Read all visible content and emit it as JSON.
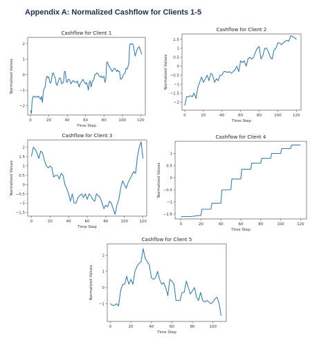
{
  "page": {
    "heading": "Appendix A: Normalized Cashflow for Clients 1-5"
  },
  "colors": {
    "line": "#3a7ca5",
    "heading": "#1f2d4d"
  },
  "chart_data": [
    {
      "type": "line",
      "title": "Cashflow for Client 1",
      "xlabel": "Time Step",
      "ylabel": "Normalized Values",
      "xlim": [
        -3,
        125
      ],
      "ylim": [
        -2.6,
        2.4
      ],
      "xticks": [
        0,
        20,
        40,
        60,
        80,
        100,
        120
      ],
      "yticks": [
        -2,
        -1,
        0,
        1,
        2
      ],
      "grid": false,
      "x": [
        0,
        1,
        2,
        3,
        4,
        5,
        6,
        7,
        8,
        9,
        10,
        11,
        12,
        13,
        14,
        15,
        16,
        17,
        18,
        19,
        20,
        21,
        22,
        23,
        24,
        25,
        26,
        27,
        28,
        29,
        30,
        31,
        32,
        33,
        34,
        35,
        36,
        37,
        38,
        39,
        40,
        41,
        42,
        43,
        44,
        45,
        46,
        47,
        48,
        49,
        50,
        51,
        52,
        53,
        54,
        55,
        56,
        57,
        58,
        59,
        60,
        61,
        62,
        63,
        64,
        65,
        66,
        67,
        68,
        69,
        70,
        71,
        72,
        73,
        74,
        75,
        76,
        77,
        78,
        79,
        80,
        81,
        82,
        83,
        84,
        85,
        86,
        87,
        88,
        89,
        90,
        91,
        92,
        93,
        94,
        95,
        96,
        97,
        98,
        99,
        100,
        101,
        102,
        103,
        104,
        105,
        106,
        107,
        108,
        109,
        110,
        111,
        112,
        113,
        114,
        115,
        116,
        117,
        118,
        119,
        120,
        121
      ],
      "y": [
        -2.3,
        -2.5,
        -1.6,
        -1.4,
        -1.4,
        -1.45,
        -1.45,
        -1.4,
        -1.45,
        -1.4,
        -1.5,
        -1.6,
        -1.4,
        -1.8,
        -1.1,
        -0.9,
        -0.8,
        -0.3,
        -0.1,
        -0.2,
        -0.15,
        -0.5,
        -0.55,
        -0.3,
        0.1,
        0.1,
        -0.1,
        -0.2,
        -0.6,
        -0.7,
        -0.5,
        -0.3,
        -0.2,
        -0.3,
        -0.6,
        -0.5,
        -0.5,
        0.2,
        0.2,
        -0.4,
        -0.5,
        -0.3,
        -0.3,
        -0.4,
        -0.6,
        -0.5,
        -0.4,
        -0.4,
        -0.45,
        -0.5,
        -0.5,
        -0.4,
        -0.6,
        -0.8,
        -0.6,
        -0.5,
        -0.4,
        -0.3,
        -0.4,
        -0.5,
        -0.6,
        -0.5,
        -0.7,
        -1.0,
        -0.5,
        -0.4,
        -0.8,
        -0.5,
        -0.4,
        -0.3,
        0.0,
        0.0,
        0.1,
        0.1,
        0.0,
        -0.1,
        -0.15,
        -0.1,
        -0.2,
        -0.15,
        -0.1,
        -0.5,
        -0.3,
        0.8,
        0.8,
        0.6,
        0.5,
        0.4,
        0.3,
        0.2,
        0.3,
        0.4,
        0.4,
        0.3,
        0.2,
        0.3,
        0.2,
        0.2,
        -0.3,
        -0.25,
        -0.2,
        0.0,
        0.05,
        0.1,
        0.4,
        0.35,
        0.5,
        0.7,
        1.9,
        2.0,
        1.95,
        2.0,
        1.9,
        1.5,
        1.2,
        1.4,
        1.6,
        1.7,
        1.8,
        1.7,
        1.5,
        1.3
      ],
      "legend": null
    },
    {
      "type": "line",
      "title": "Cashflow for Client 2",
      "xlabel": "Time Step",
      "ylabel": "Normalized Values",
      "xlim": [
        -3,
        125
      ],
      "ylim": [
        -2.45,
        1.8
      ],
      "xticks": [
        0,
        20,
        40,
        60,
        80,
        100,
        120
      ],
      "yticks": [
        -2.0,
        -1.5,
        -1.0,
        -0.5,
        0.0,
        0.5,
        1.0,
        1.5
      ],
      "grid": false,
      "x": [
        0,
        2,
        4,
        6,
        8,
        10,
        12,
        14,
        16,
        18,
        20,
        22,
        24,
        26,
        28,
        30,
        32,
        34,
        36,
        38,
        40,
        42,
        44,
        46,
        48,
        50,
        52,
        54,
        56,
        58,
        60,
        62,
        64,
        66,
        68,
        70,
        72,
        74,
        76,
        78,
        80,
        82,
        84,
        86,
        88,
        90,
        92,
        94,
        96,
        98,
        100,
        102,
        104,
        106,
        108,
        110,
        112,
        114,
        116,
        118,
        120
      ],
      "y": [
        -2.2,
        -1.7,
        -1.7,
        -1.65,
        -1.7,
        -1.5,
        -1.8,
        -1.2,
        -0.9,
        -0.6,
        -0.9,
        -0.7,
        -0.5,
        -0.8,
        -0.4,
        -0.5,
        -0.9,
        -0.7,
        -0.8,
        -0.5,
        -0.5,
        -0.3,
        -0.3,
        -0.35,
        -0.3,
        -0.4,
        -0.3,
        -0.2,
        0.0,
        -0.3,
        0.3,
        0.2,
        0.3,
        0.0,
        0.4,
        0.5,
        0.4,
        0.5,
        0.8,
        1.0,
        1.1,
        0.4,
        0.6,
        1.0,
        1.0,
        0.8,
        0.5,
        0.4,
        0.9,
        1.0,
        1.3,
        1.3,
        1.2,
        1.3,
        1.4,
        1.45,
        1.4,
        1.7,
        1.65,
        1.6,
        1.5
      ],
      "legend": null
    },
    {
      "type": "line",
      "title": "Cashflow for Client 3",
      "xlabel": "Time Step",
      "ylabel": "Normalized Values",
      "xlim": [
        -4,
        124
      ],
      "ylim": [
        -1.7,
        2.4
      ],
      "xticks": [
        0,
        20,
        40,
        60,
        80,
        100,
        120
      ],
      "yticks": [
        -1.5,
        -1.0,
        -0.5,
        0.0,
        0.5,
        1.0,
        1.5,
        2.0
      ],
      "grid": false,
      "x": [
        0,
        2,
        4,
        6,
        8,
        10,
        12,
        14,
        16,
        18,
        20,
        22,
        24,
        26,
        28,
        30,
        32,
        34,
        36,
        38,
        40,
        42,
        44,
        46,
        48,
        50,
        52,
        54,
        56,
        58,
        60,
        62,
        64,
        66,
        68,
        70,
        72,
        74,
        76,
        78,
        80,
        82,
        84,
        86,
        88,
        90,
        92,
        94,
        96,
        98,
        100,
        102,
        104,
        106,
        108,
        110,
        112,
        114,
        116,
        118,
        120
      ],
      "y": [
        1.5,
        2.0,
        1.9,
        1.7,
        1.4,
        1.8,
        1.7,
        1.3,
        1.0,
        0.9,
        1.0,
        0.9,
        0.4,
        0.5,
        0.5,
        0.3,
        0.6,
        0.5,
        0.0,
        -0.2,
        -0.5,
        -0.9,
        -0.5,
        -1.0,
        -1.0,
        -0.7,
        -0.6,
        -0.5,
        -0.7,
        -0.5,
        -0.8,
        -0.5,
        -0.6,
        -0.8,
        -0.9,
        -0.5,
        -0.6,
        -0.7,
        -1.0,
        -1.3,
        -1.1,
        -1.2,
        -0.9,
        -1.0,
        -1.3,
        -1.6,
        -1.1,
        -0.8,
        -0.2,
        0.2,
        0.0,
        -0.2,
        0.1,
        0.3,
        0.5,
        0.7,
        0.6,
        1.5,
        2.0,
        2.3,
        1.4
      ],
      "legend": null
    },
    {
      "type": "line",
      "title": "Cashflow for Client 4",
      "xlabel": "Time Step",
      "ylabel": "Normalized Values",
      "xlim": [
        -6,
        126
      ],
      "ylim": [
        -1.7,
        1.5
      ],
      "xticks": [
        0,
        20,
        40,
        60,
        80,
        100,
        120
      ],
      "yticks": [
        -1.5,
        -1.0,
        -0.5,
        0.0,
        0.5,
        1.0
      ],
      "grid": false,
      "x": [
        0,
        10,
        20,
        21,
        30,
        31,
        40,
        41,
        50,
        51,
        60,
        61,
        70,
        71,
        80,
        81,
        90,
        91,
        100,
        101,
        110,
        111,
        120
      ],
      "y": [
        -1.6,
        -1.6,
        -1.55,
        -1.3,
        -1.3,
        -1.05,
        -1.05,
        -0.5,
        -0.5,
        -0.05,
        -0.05,
        0.35,
        0.35,
        0.6,
        0.6,
        0.8,
        0.8,
        1.0,
        1.0,
        1.2,
        1.2,
        1.35,
        1.35
      ],
      "legend": null
    },
    {
      "type": "line",
      "title": "Cashflow for Client 5",
      "xlabel": "Time Step",
      "ylabel": "Normalized Values",
      "xlim": [
        -3,
        113
      ],
      "ylim": [
        -2.1,
        2.7
      ],
      "xticks": [
        0,
        20,
        40,
        60,
        80,
        100
      ],
      "yticks": [
        -1,
        0,
        1,
        2
      ],
      "grid": false,
      "x": [
        0,
        2,
        4,
        6,
        8,
        10,
        12,
        14,
        16,
        18,
        20,
        22,
        24,
        26,
        28,
        30,
        32,
        34,
        36,
        38,
        40,
        42,
        44,
        46,
        48,
        50,
        52,
        54,
        56,
        58,
        60,
        62,
        64,
        66,
        68,
        70,
        72,
        74,
        76,
        78,
        80,
        82,
        84,
        86,
        88,
        90,
        92,
        94,
        96,
        98,
        100,
        102,
        104,
        106,
        108
      ],
      "y": [
        -1.0,
        -1.1,
        -1.1,
        -1.0,
        -1.15,
        -0.2,
        0.2,
        0.2,
        0.7,
        0.2,
        0.5,
        0.2,
        1.0,
        1.3,
        1.5,
        1.6,
        2.4,
        1.8,
        1.6,
        1.4,
        0.6,
        0.5,
        0.6,
        1.0,
        0.5,
        0.2,
        0.3,
        0.0,
        -0.5,
        0.5,
        0.4,
        0.2,
        -0.8,
        -0.8,
        -0.8,
        -0.3,
        -0.3,
        0.4,
        0.0,
        -0.4,
        -0.2,
        0.0,
        -0.6,
        -0.8,
        -0.3,
        -0.8,
        -0.9,
        -0.8,
        -0.9,
        -1.0,
        -0.9,
        -0.7,
        -0.6,
        -1.0,
        -1.75
      ],
      "legend": null
    }
  ]
}
